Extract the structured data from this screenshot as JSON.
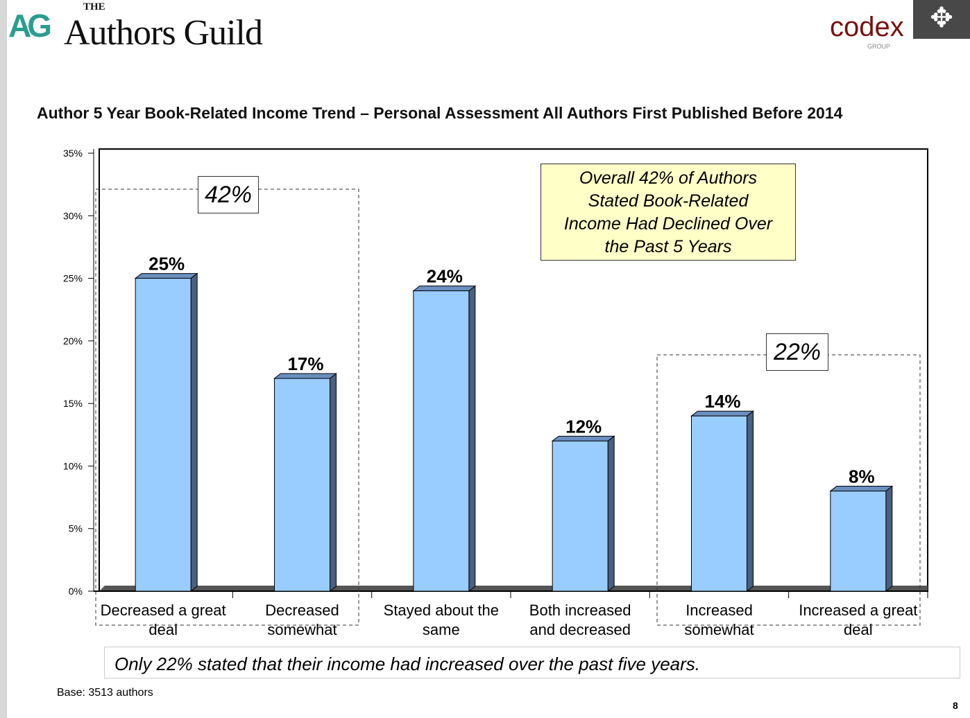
{
  "header": {
    "logo_the": "THE",
    "logo_mark": "AG",
    "logo_name": "Authors Guild",
    "partner_logo": "codex",
    "partner_sub": "GROUP"
  },
  "chart_data": {
    "type": "bar",
    "title": "Author 5 Year Book-Related Income Trend – Personal Assessment All Authors First Published Before 2014",
    "categories": [
      [
        "Decreased a great",
        "deal"
      ],
      [
        "Decreased",
        "somewhat"
      ],
      [
        "Stayed about the",
        "same"
      ],
      [
        "Both increased",
        "and decreased"
      ],
      [
        "Increased",
        "somewhat"
      ],
      [
        "Increased a great",
        "deal"
      ]
    ],
    "values": [
      25,
      17,
      24,
      12,
      14,
      8
    ],
    "data_labels": [
      "25%",
      "17%",
      "24%",
      "12%",
      "14%",
      "8%"
    ],
    "ylim": [
      0,
      35
    ],
    "yticks": [
      "0%",
      "5%",
      "10%",
      "15%",
      "20%",
      "25%",
      "30%",
      "35%"
    ],
    "bar_color": "#99ccff",
    "annotations": {
      "group_declined": "42%",
      "group_increased": "22%",
      "note": [
        "Overall 42% of Authors",
        "Stated Book-Related",
        "Income Had Declined Over",
        "the Past 5 Years"
      ]
    }
  },
  "footer": {
    "summary": "Only 22% stated that their income had increased over the past five years.",
    "base": "Base: 3513 authors",
    "page": "8"
  }
}
